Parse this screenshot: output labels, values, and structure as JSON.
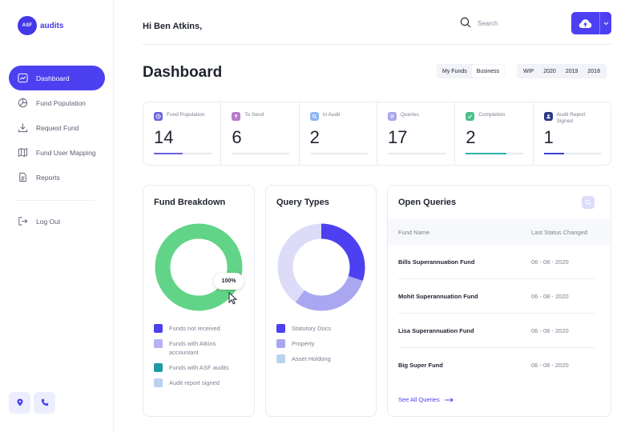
{
  "brand": {
    "badge": "ASF",
    "name": "audits",
    "color": "#4338e8"
  },
  "sidebar": {
    "items": [
      {
        "label": "Dashboard",
        "icon": "chart-line-icon",
        "active": true
      },
      {
        "label": "Fund Population",
        "icon": "pie-chart-icon",
        "active": false
      },
      {
        "label": "Request Fund",
        "icon": "download-icon",
        "active": false
      },
      {
        "label": "Fund User Mapping",
        "icon": "map-icon",
        "active": false
      },
      {
        "label": "Reports",
        "icon": "document-icon",
        "active": false
      }
    ],
    "logout_label": "Log Out",
    "bottom_icons": [
      "location-pin-icon",
      "phone-icon"
    ]
  },
  "header": {
    "greeting": "Hi Ben Atkins,",
    "search_placeholder": "Search",
    "upload_icon": "cloud-upload-icon"
  },
  "page": {
    "title": "Dashboard",
    "fund_filters": [
      "My Funds",
      "Business"
    ],
    "selected_fund_filter": "Business",
    "year_filters": [
      "WIP",
      "2020",
      "2019",
      "2018"
    ]
  },
  "stats": [
    {
      "label": "Fund Population",
      "value": "14",
      "icon_color": "#6b63e0",
      "bar_color": "#6b63e0",
      "progress": 0.5
    },
    {
      "label": "To Send",
      "value": "6",
      "icon_color": "#b57bc9",
      "bar_color": "#b57bc9",
      "progress": 0.0
    },
    {
      "label": "In Audit",
      "value": "2",
      "icon_color": "#8fb6f2",
      "bar_color": "#8fb6f2",
      "progress": 0.0
    },
    {
      "label": "Queries",
      "value": "17",
      "icon_color": "#a8a6ee",
      "bar_color": "#a8a6ee",
      "progress": 0.0
    },
    {
      "label": "Completion",
      "value": "2",
      "icon_color": "#4cc08a",
      "bar_color": "#2bb3a8",
      "progress": 0.7
    },
    {
      "label": "Audit Report Signed",
      "value": "1",
      "icon_color": "#2c3a8a",
      "bar_color": "#3a3fd6",
      "progress": 0.35
    }
  ],
  "fund_breakdown": {
    "title": "Fund Breakdown",
    "tooltip": "100%",
    "legend": [
      {
        "label": "Funds not received",
        "color": "#4c40f0"
      },
      {
        "label": "Funds with Atkins accountant",
        "color": "#b4b2f2"
      },
      {
        "label": "Funds with ASF audits",
        "color": "#1f9aa6"
      },
      {
        "label": "Audit report signed",
        "color": "#b9d3ef"
      }
    ],
    "ring_color": "#62d488"
  },
  "query_types": {
    "title": "Query Types",
    "legend": [
      {
        "label": "Statutory Docs",
        "color": "#4c40f0"
      },
      {
        "label": "Property",
        "color": "#a9a7f0"
      },
      {
        "label": "Asset Holdong",
        "color": "#b9d3ef"
      }
    ],
    "segments": [
      {
        "color": "#4c40f0",
        "fraction": 0.3
      },
      {
        "color": "#a9a7f0",
        "fraction": 0.3
      },
      {
        "color": "#dddcf8",
        "fraction": 0.4
      }
    ]
  },
  "open_queries": {
    "title": "Open Queries",
    "columns": [
      "Fund Name",
      "Last Status Changed"
    ],
    "rows": [
      {
        "name": "Bills Superannuation Fund",
        "date": "06 - 08 - 2020"
      },
      {
        "name": "Mohit Superannuation Fund",
        "date": "06 - 08 - 2020"
      },
      {
        "name": "Lisa Superannuation Fund",
        "date": "06 - 08 - 2020"
      },
      {
        "name": "Big Super Fund",
        "date": "06 - 08 - 2020"
      }
    ],
    "see_all": "See All Queries"
  }
}
